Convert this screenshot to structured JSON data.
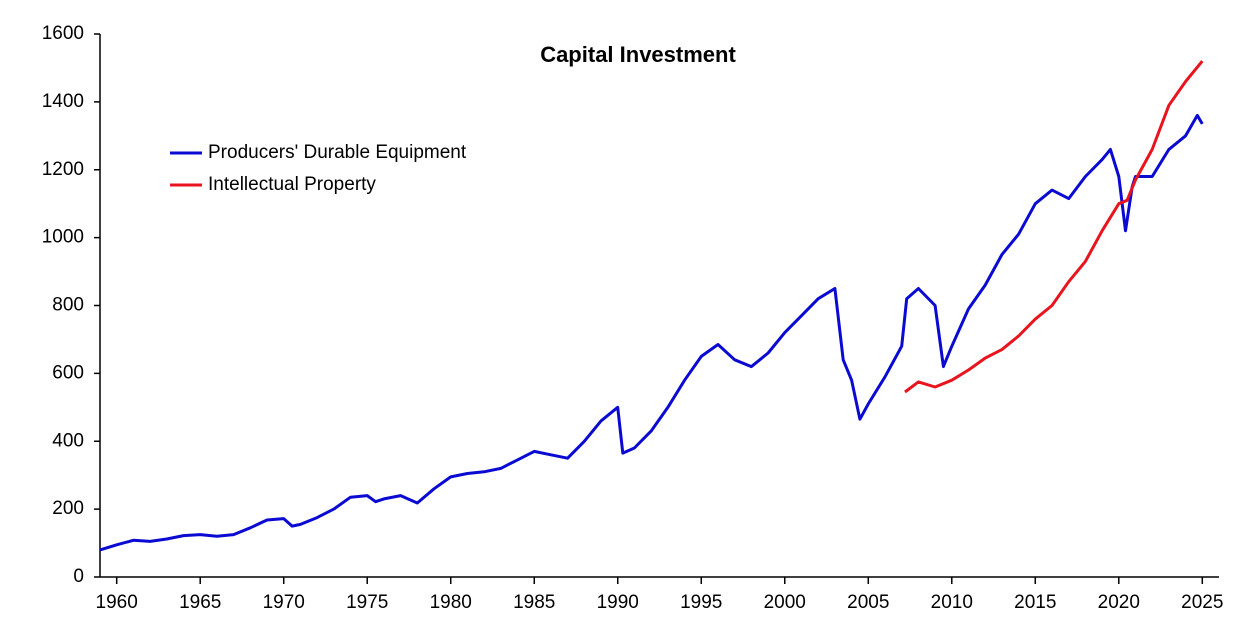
{
  "chart_data": {
    "type": "line",
    "title": "Capital Investment",
    "legend": "upper left",
    "xlim": [
      1959,
      2026
    ],
    "ylim": [
      0,
      1600
    ],
    "xticks": [
      1960,
      1965,
      1970,
      1975,
      1980,
      1985,
      1990,
      1995,
      2000,
      2005,
      2010,
      2015,
      2020,
      2025
    ],
    "yticks": [
      0,
      200,
      400,
      600,
      800,
      1000,
      1200,
      1400,
      1600
    ],
    "series": [
      {
        "name": "Producers' Durable Equipment",
        "color": "#0a0ad2",
        "x": [
          1959,
          1960,
          1961,
          1962,
          1963,
          1964,
          1965,
          1966,
          1967,
          1968,
          1969,
          1970,
          1970.5,
          1971,
          1972,
          1973,
          1974,
          1975,
          1975.5,
          1976,
          1977,
          1978,
          1979,
          1980,
          1981,
          1982,
          1983,
          1984,
          1985,
          1986,
          1987,
          1988,
          1989,
          1990,
          1990.3,
          1991,
          1992,
          1993,
          1994,
          1995,
          1996,
          1997,
          1998,
          1999,
          2000,
          2001,
          2002,
          2003,
          2003.5,
          2004,
          2004.5,
          2005,
          2006,
          2007,
          2007.3,
          2008,
          2009,
          2009.5,
          2010,
          2011,
          2012,
          2013,
          2014,
          2015,
          2016,
          2017,
          2018,
          2019,
          2019.5,
          2020,
          2020.4,
          2020.8,
          2021,
          2022,
          2023,
          2024,
          2024.7,
          2025
        ],
        "values": [
          80,
          95,
          108,
          105,
          112,
          122,
          125,
          120,
          125,
          145,
          168,
          172,
          150,
          155,
          175,
          200,
          235,
          240,
          222,
          230,
          240,
          218,
          260,
          295,
          305,
          310,
          320,
          345,
          370,
          360,
          350,
          400,
          460,
          500,
          365,
          380,
          430,
          500,
          580,
          650,
          685,
          640,
          620,
          660,
          720,
          770,
          820,
          850,
          640,
          580,
          465,
          510,
          590,
          680,
          820,
          850,
          800,
          620,
          680,
          790,
          860,
          950,
          1010,
          1100,
          1140,
          1115,
          1180,
          1230,
          1260,
          1180,
          1020,
          1150,
          1180,
          1180,
          1260,
          1300,
          1360,
          1335
        ]
      },
      {
        "name": "Intellectual Property",
        "color": "#e8141e",
        "x": [
          2007.2,
          2008,
          2009,
          2010,
          2011,
          2012,
          2013,
          2014,
          2015,
          2016,
          2017,
          2018,
          2019,
          2020,
          2020.5,
          2021,
          2022,
          2023,
          2024,
          2025
        ],
        "values": [
          545,
          575,
          560,
          580,
          610,
          645,
          670,
          710,
          760,
          800,
          870,
          930,
          1020,
          1100,
          1110,
          1170,
          1260,
          1390,
          1460,
          1520
        ]
      }
    ]
  }
}
